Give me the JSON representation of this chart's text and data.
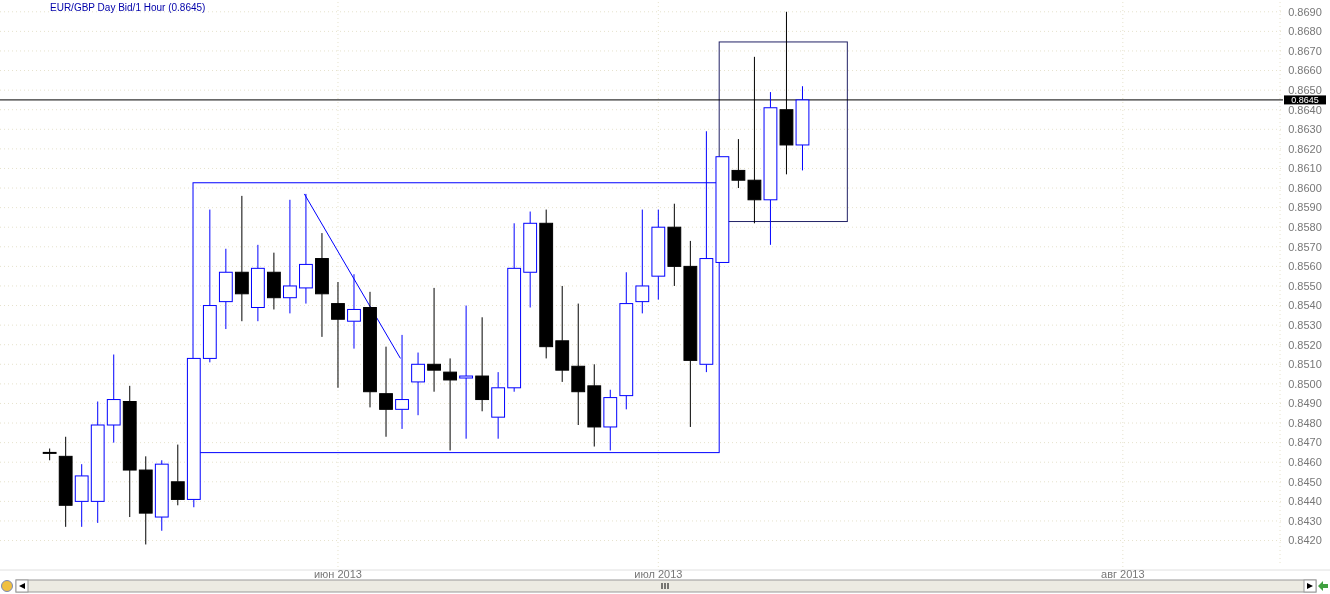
{
  "chart_data": {
    "type": "candlestick",
    "title": "EUR/GBP Day Bid/1 Hour (0.8645)",
    "categories": [
      null,
      null,
      null,
      null,
      null,
      null,
      null,
      null,
      null,
      null,
      null,
      null,
      null,
      null,
      null,
      null,
      null,
      null,
      "июн 2013",
      null,
      null,
      null,
      null,
      null,
      null,
      null,
      null,
      null,
      null,
      null,
      null,
      null,
      null,
      null,
      null,
      null,
      null,
      null,
      "июл 2013",
      null,
      null,
      null,
      null,
      null,
      null,
      null,
      null,
      null,
      null,
      null,
      null,
      null,
      null,
      null,
      null,
      null,
      null,
      null,
      null,
      null,
      null,
      null,
      null,
      null,
      null,
      null,
      null,
      "авг 2013",
      null,
      null,
      null,
      null,
      null,
      null,
      null,
      null,
      null
    ],
    "ohlc": [
      [
        0.8465,
        0.8467,
        0.8461,
        0.8465
      ],
      [
        0.8463,
        0.8473,
        0.8427,
        0.8438
      ],
      [
        0.844,
        0.8459,
        0.8427,
        0.8453
      ],
      [
        0.844,
        0.8491,
        0.8429,
        0.8479
      ],
      [
        0.8479,
        0.8515,
        0.847,
        0.8492
      ],
      [
        0.8491,
        0.8499,
        0.8432,
        0.8456
      ],
      [
        0.8456,
        0.8463,
        0.8418,
        0.8434
      ],
      [
        0.8432,
        0.8461,
        0.8425,
        0.8459
      ],
      [
        0.845,
        0.8469,
        0.8438,
        0.8441
      ],
      [
        0.8441,
        0.8513,
        0.8437,
        0.8513
      ],
      [
        0.8513,
        0.8589,
        0.8511,
        0.854
      ],
      [
        0.8542,
        0.8569,
        0.8528,
        0.8557
      ],
      [
        0.8557,
        0.8596,
        0.8532,
        0.8546
      ],
      [
        0.8539,
        0.8571,
        0.8532,
        0.8559
      ],
      [
        0.8557,
        0.8567,
        0.8538,
        0.8544
      ],
      [
        0.8544,
        0.8594,
        0.8536,
        0.855
      ],
      [
        0.8549,
        0.8597,
        0.8541,
        0.8561
      ],
      [
        0.8564,
        0.8577,
        0.8524,
        0.8546
      ],
      [
        0.8541,
        0.8552,
        0.8498,
        0.8533
      ],
      [
        0.8532,
        0.8556,
        0.8518,
        0.8538
      ],
      [
        0.8539,
        0.8547,
        0.8488,
        0.8496
      ],
      [
        0.8495,
        0.8519,
        0.8473,
        0.8487
      ],
      [
        0.8487,
        0.8525,
        0.8477,
        0.8492
      ],
      [
        0.8501,
        0.8516,
        0.8484,
        0.851
      ],
      [
        0.851,
        0.8549,
        0.8496,
        0.8507
      ],
      [
        0.8506,
        0.8513,
        0.8466,
        0.8502
      ],
      [
        0.8503,
        0.854,
        0.8472,
        0.8504
      ],
      [
        0.8504,
        0.8534,
        0.8486,
        0.8492
      ],
      [
        0.8483,
        0.8506,
        0.8472,
        0.8498
      ],
      [
        0.8498,
        0.8582,
        0.8496,
        0.8559
      ],
      [
        0.8557,
        0.8588,
        0.8539,
        0.8582
      ],
      [
        0.8582,
        0.8589,
        0.8513,
        0.8519
      ],
      [
        0.8522,
        0.855,
        0.8501,
        0.8507
      ],
      [
        0.8509,
        0.8541,
        0.8479,
        0.8496
      ],
      [
        0.8499,
        0.851,
        0.8468,
        0.8478
      ],
      [
        0.8478,
        0.8497,
        0.8466,
        0.8493
      ],
      [
        0.8494,
        0.8557,
        0.8487,
        0.8541
      ],
      [
        0.8542,
        0.8589,
        0.8536,
        0.855
      ],
      [
        0.8555,
        0.8589,
        0.8543,
        0.858
      ],
      [
        0.858,
        0.8592,
        0.855,
        0.856
      ],
      [
        0.856,
        0.8573,
        0.8478,
        0.8512
      ],
      [
        0.851,
        0.8629,
        0.8506,
        0.8564
      ],
      [
        0.8562,
        0.8616,
        0.8562,
        0.8616
      ],
      [
        0.8609,
        0.8625,
        0.86,
        0.8604
      ],
      [
        0.8604,
        0.8667,
        0.8582,
        0.8594
      ],
      [
        0.8594,
        0.8649,
        0.8571,
        0.8641
      ],
      [
        0.864,
        0.869,
        0.8607,
        0.8622
      ],
      [
        0.8622,
        0.8652,
        0.8609,
        0.8645
      ],
      null,
      null,
      null,
      null,
      null,
      null,
      null,
      null,
      null,
      null,
      null,
      null,
      null,
      null,
      null,
      null,
      null,
      null,
      null,
      null,
      null,
      null,
      null,
      null,
      null,
      null,
      null,
      null,
      null
    ],
    "colors": [
      "#000000",
      "#000000",
      "#0000ff",
      "#0000ff",
      "#0000ff",
      "#000000",
      "#000000",
      "#0000ff",
      "#000000",
      "#0000ff",
      "#0000ff",
      "#0000ff",
      "#000000",
      "#0000ff",
      "#000000",
      "#0000ff",
      "#0000ff",
      "#000000",
      "#000000",
      "#0000ff",
      "#000000",
      "#000000",
      "#0000ff",
      "#0000ff",
      "#000000",
      "#000000",
      "#0000ff",
      "#000000",
      "#0000ff",
      "#0000ff",
      "#0000ff",
      "#000000",
      "#000000",
      "#000000",
      "#000000",
      "#0000ff",
      "#0000ff",
      "#0000ff",
      "#0000ff",
      "#000000",
      "#000000",
      "#0000ff",
      "#0000ff",
      "#000000",
      "#000000",
      "#0000ff",
      "#000000",
      "#0000ff",
      null,
      null,
      null,
      null,
      null,
      null,
      null,
      null,
      null,
      null,
      null,
      null,
      null,
      null,
      null,
      null,
      null,
      null,
      null,
      null,
      null,
      null,
      null,
      null,
      null,
      null,
      null,
      null,
      null
    ],
    "ylim": [
      0.8407,
      0.8695
    ],
    "yticks": [
      {
        "value": 0.842,
        "label": "0.8420"
      },
      {
        "value": 0.843,
        "label": "0.8430"
      },
      {
        "value": 0.844,
        "label": "0.8440"
      },
      {
        "value": 0.845,
        "label": "0.8450"
      },
      {
        "value": 0.846,
        "label": "0.8460"
      },
      {
        "value": 0.847,
        "label": "0.8470"
      },
      {
        "value": 0.848,
        "label": "0.8480"
      },
      {
        "value": 0.849,
        "label": "0.8490"
      },
      {
        "value": 0.85,
        "label": "0.8500"
      },
      {
        "value": 0.851,
        "label": "0.8510"
      },
      {
        "value": 0.852,
        "label": "0.8520"
      },
      {
        "value": 0.853,
        "label": "0.8530"
      },
      {
        "value": 0.854,
        "label": "0.8540"
      },
      {
        "value": 0.855,
        "label": "0.8550"
      },
      {
        "value": 0.856,
        "label": "0.8560"
      },
      {
        "value": 0.857,
        "label": "0.8570"
      },
      {
        "value": 0.858,
        "label": "0.8580"
      },
      {
        "value": 0.859,
        "label": "0.8590"
      },
      {
        "value": 0.86,
        "label": "0.8600"
      },
      {
        "value": 0.861,
        "label": "0.8610"
      },
      {
        "value": 0.862,
        "label": "0.8620"
      },
      {
        "value": 0.863,
        "label": "0.8630"
      },
      {
        "value": 0.864,
        "label": "0.8640"
      },
      {
        "value": 0.865,
        "label": "0.8650"
      },
      {
        "value": 0.866,
        "label": "0.8660"
      },
      {
        "value": 0.867,
        "label": "0.8670"
      },
      {
        "value": 0.868,
        "label": "0.8680"
      },
      {
        "value": 0.869,
        "label": "0.8690"
      }
    ],
    "ref_lines": [
      {
        "axis": "y",
        "value": 0.8645,
        "label": "0.8645",
        "color": "#000000"
      }
    ],
    "grid": true
  }
}
